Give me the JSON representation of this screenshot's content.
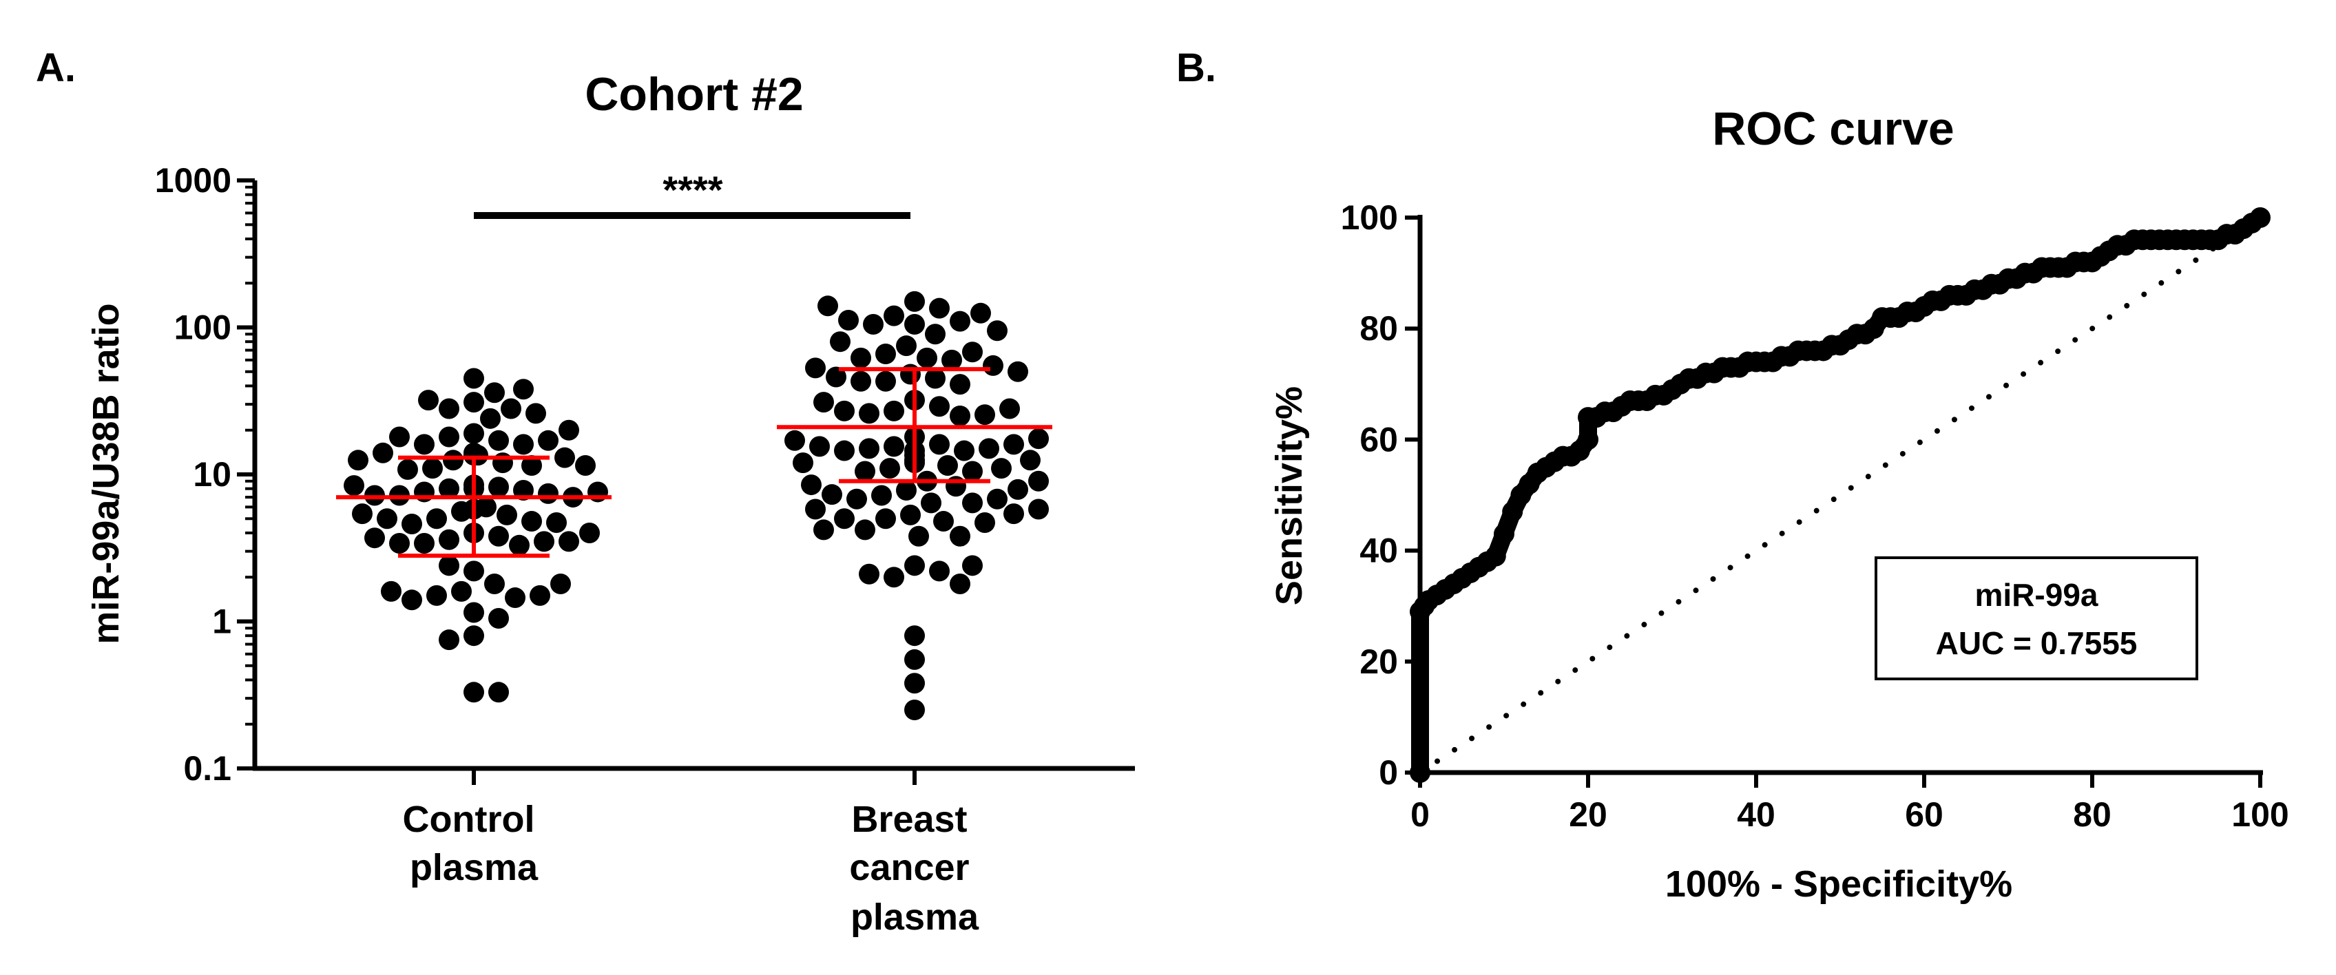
{
  "chart_data": [
    {
      "panel": "A.",
      "type": "scatter",
      "title": "Cohort #2",
      "ylabel": "miR-99a/U38B ratio",
      "xlabel": "",
      "yscale": "log",
      "ylim": [
        0.1,
        1000
      ],
      "yticks": [
        "0.1",
        "1",
        "10",
        "100",
        "1000"
      ],
      "significance": "****",
      "stat_colors": {
        "points": "#000000",
        "stats": "#ff0000"
      },
      "groups": [
        {
          "name": "Control plasma",
          "label_lines": [
            "Control",
            "plasma"
          ],
          "median": 7,
          "q1": 2.8,
          "q3": 13,
          "values": [
            45,
            36,
            31,
            28,
            28,
            32,
            38,
            24,
            19,
            18,
            17,
            16,
            16,
            17,
            18,
            20,
            26,
            14,
            13.5,
            13,
            12.5,
            12,
            11.5,
            11,
            10.8,
            11.5,
            12.5,
            13.5,
            14,
            8.5,
            8.2,
            8,
            7.8,
            7.6,
            7.4,
            7.2,
            7,
            7.2,
            7.6,
            8,
            8.4,
            6,
            5.6,
            5.3,
            5,
            4.8,
            4.6,
            4.7,
            5,
            5.4,
            5.8,
            4,
            3.8,
            3.6,
            3.5,
            3.4,
            3.3,
            3.4,
            3.5,
            3.7,
            4,
            2.2,
            1.8,
            1.6,
            1.5,
            1.45,
            1.4,
            1.5,
            1.6,
            1.8,
            2.4,
            1.15,
            1.05,
            0.8,
            0.75,
            0.33,
            0.33
          ]
        },
        {
          "name": "Breast cancer plasma",
          "label_lines": [
            "Breast",
            "cancer",
            "plasma"
          ],
          "median": 21,
          "q1": 9,
          "q3": 52,
          "values": [
            150,
            135,
            120,
            110,
            105,
            105,
            112,
            125,
            140,
            90,
            75,
            66,
            62,
            60,
            62,
            68,
            80,
            95,
            55,
            48,
            45,
            43,
            41,
            43,
            46,
            50,
            53,
            32,
            29,
            27,
            26,
            25,
            25.5,
            27,
            28,
            31,
            18,
            16,
            15.5,
            15,
            14.5,
            14.5,
            15,
            15.5,
            16,
            17,
            17.5,
            14.5,
            13.5,
            12.5,
            12,
            11.5,
            11,
            10.5,
            10.5,
            11,
            12,
            12.5,
            9,
            8.3,
            7.8,
            7.2,
            6.8,
            6.4,
            6.4,
            6.8,
            7.3,
            7.9,
            8.5,
            9,
            5.8,
            5.3,
            5,
            4.8,
            5,
            5.4,
            5.8,
            4.7,
            4.2,
            3.8,
            3.8,
            4.2,
            2.4,
            2.2,
            2,
            1.8,
            2.1,
            2.4,
            0.8,
            0.55,
            0.38,
            0.25
          ]
        }
      ]
    },
    {
      "panel": "B.",
      "type": "line",
      "title": "ROC curve",
      "xlabel": "100% - Specificity%",
      "ylabel": "Sensitivity%",
      "xlim": [
        0,
        100
      ],
      "ylim": [
        0,
        100
      ],
      "xticks": [
        "0",
        "20",
        "40",
        "60",
        "80",
        "100"
      ],
      "yticks": [
        "0",
        "20",
        "40",
        "60",
        "80",
        "100"
      ],
      "reference_line": "diagonal-dotted",
      "series": [
        {
          "name": "miR-99a",
          "x": [
            0,
            0,
            0.5,
            1,
            2,
            3,
            4,
            5,
            6,
            7,
            8,
            9,
            10,
            11,
            12,
            13,
            14,
            15,
            16,
            17,
            18,
            19,
            20,
            20,
            21,
            22,
            23,
            24,
            25,
            26,
            27,
            28,
            29,
            30,
            31,
            32,
            33,
            34,
            35,
            36,
            37,
            38,
            39,
            40,
            41,
            42,
            43,
            44,
            45,
            46,
            47,
            48,
            49,
            50,
            51,
            52,
            53,
            54,
            55,
            56,
            57,
            58,
            59,
            60,
            61,
            62,
            63,
            64,
            65,
            66,
            67,
            68,
            69,
            70,
            71,
            72,
            73,
            74,
            75,
            76,
            77,
            78,
            79,
            80,
            81,
            82,
            83,
            84,
            85,
            86,
            87,
            88,
            89,
            90,
            91,
            92,
            93,
            94,
            95,
            96,
            97,
            98,
            99,
            100
          ],
          "y": [
            0,
            29,
            30,
            31,
            32,
            33,
            34,
            35,
            36,
            37,
            38,
            39,
            43,
            47,
            50,
            52,
            54,
            55,
            56,
            57,
            57,
            58,
            60,
            64,
            64,
            65,
            65,
            66,
            67,
            67,
            67,
            68,
            68,
            69,
            70,
            71,
            71,
            72,
            72,
            73,
            73,
            73,
            74,
            74,
            74,
            74,
            75,
            75,
            76,
            76,
            76,
            76,
            77,
            77,
            78,
            79,
            79,
            80,
            82,
            82,
            82,
            83,
            83,
            84,
            85,
            85,
            86,
            86,
            86,
            87,
            87,
            88,
            88,
            89,
            89,
            90,
            90,
            91,
            91,
            91,
            91,
            92,
            92,
            92,
            93,
            94,
            95,
            95,
            96,
            96,
            96,
            96,
            96,
            96,
            96,
            96,
            96,
            96,
            96,
            97,
            97,
            98,
            99,
            100
          ]
        }
      ],
      "legend_box": {
        "name": "miR-99a",
        "auc_text": "AUC = 0.7555"
      }
    }
  ]
}
